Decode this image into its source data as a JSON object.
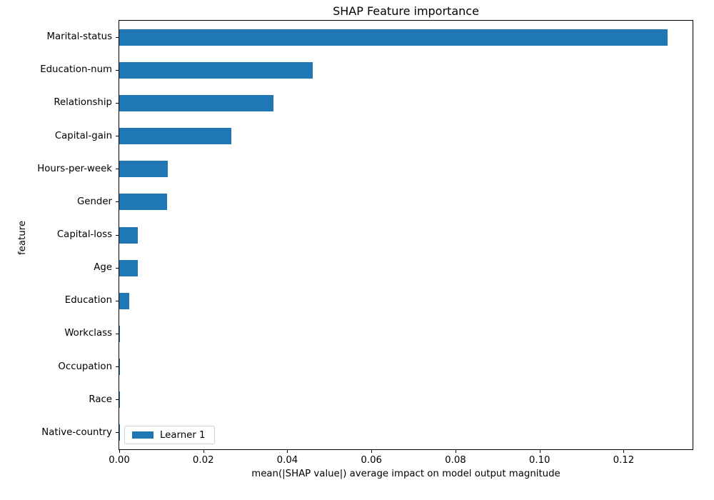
{
  "chart_data": {
    "type": "bar",
    "orientation": "horizontal",
    "title": "SHAP Feature importance",
    "xlabel": "mean(|SHAP value|) average impact on model output magnitude",
    "ylabel": "feature",
    "categories": [
      "Marital-status",
      "Education-num",
      "Relationship",
      "Capital-gain",
      "Hours-per-week",
      "Gender",
      "Capital-loss",
      "Age",
      "Education",
      "Workclass",
      "Occupation",
      "Race",
      "Native-country"
    ],
    "series": [
      {
        "name": "Learner 1",
        "color": "#1f77b4",
        "values": [
          0.1304,
          0.046,
          0.0367,
          0.0267,
          0.0115,
          0.0113,
          0.0045,
          0.0044,
          0.0024,
          0.0002,
          0.0002,
          0.0001,
          0.0001
        ]
      }
    ],
    "xlim": [
      0,
      0.1364
    ],
    "xticks": [
      0.0,
      0.02,
      0.04,
      0.06,
      0.08,
      0.1,
      0.12
    ],
    "xtick_labels": [
      "0.00",
      "0.02",
      "0.04",
      "0.06",
      "0.08",
      "0.10",
      "0.12"
    ],
    "grid": false,
    "legend": {
      "label": "Learner 1",
      "position": "lower left"
    },
    "colors": {
      "bar": "#1f77b4",
      "axis": "#000000",
      "background": "#ffffff",
      "legend_border": "#d0d0d0"
    }
  }
}
